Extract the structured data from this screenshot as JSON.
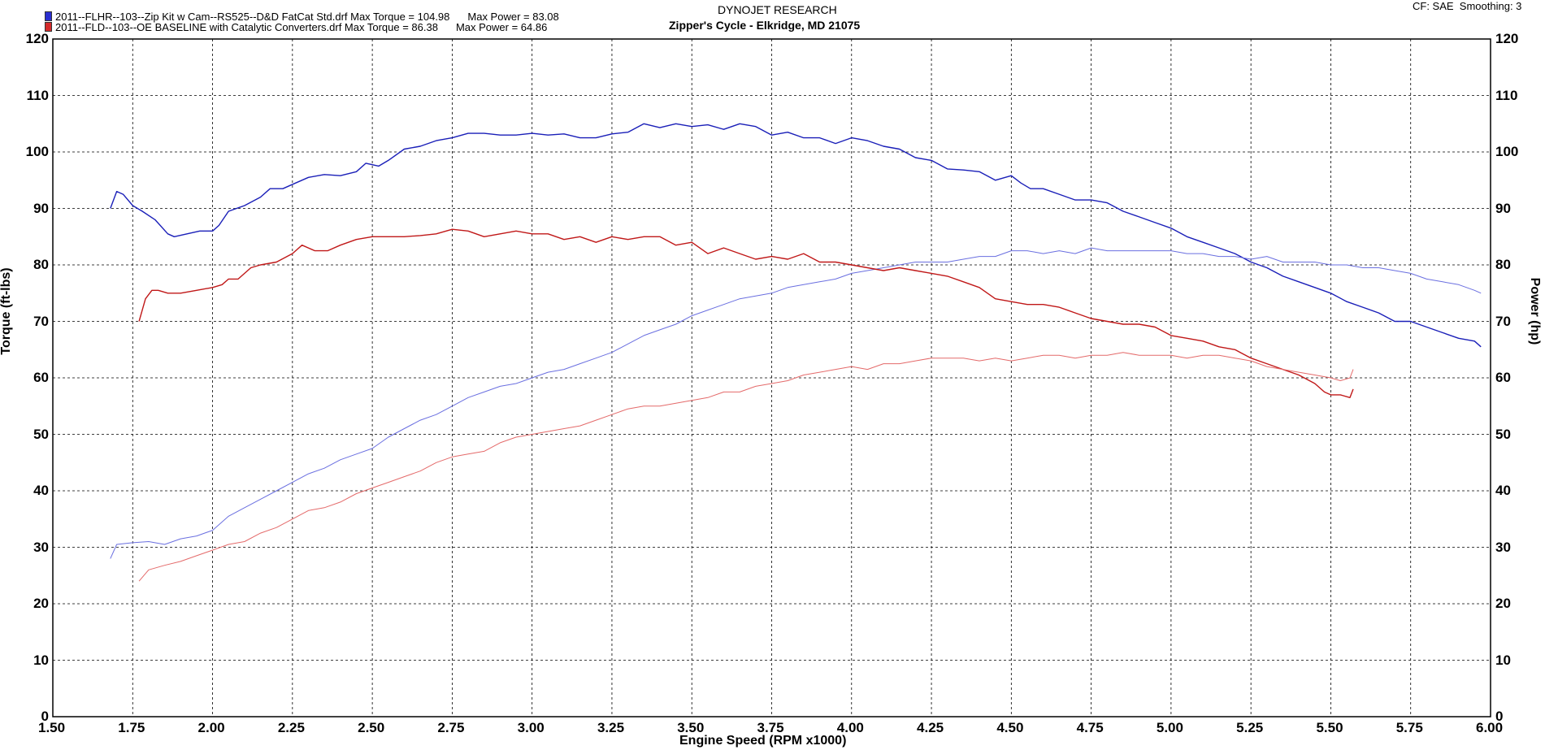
{
  "header": {
    "company": "DYNOJET RESEARCH",
    "shop": "Zipper's Cycle - Elkridge, MD 21075",
    "settings": "CF: SAE  Smoothing: 3"
  },
  "legend": [
    {
      "file": "2011--FLHR--103--Zip Kit w Cam--RS525--D&D FatCat Std.drf Max Torque = 104.98",
      "power": "Max Power = 83.08",
      "color": "#2a2fd0"
    },
    {
      "file": "2011--FLD--103--OE BASELINE with Catalytic Converters.drf Max Torque = 86.38",
      "power": "Max Power = 64.86",
      "color": "#d42a2a"
    }
  ],
  "chart_data": {
    "type": "line",
    "xlabel": "Engine Speed (RPM x1000)",
    "ylabel_left": "Torque (ft-lbs)",
    "ylabel_right": "Power (hp)",
    "xlim": [
      1.5,
      6.0
    ],
    "ylim": [
      0,
      120
    ],
    "x_ticks": [
      "1.50",
      "1.75",
      "2.00",
      "2.25",
      "2.50",
      "2.75",
      "3.00",
      "3.25",
      "3.50",
      "3.75",
      "4.00",
      "4.25",
      "4.50",
      "4.75",
      "5.00",
      "5.25",
      "5.50",
      "5.75",
      "6.00"
    ],
    "y_ticks": [
      "0",
      "10",
      "20",
      "30",
      "40",
      "50",
      "60",
      "70",
      "80",
      "90",
      "100",
      "110",
      "120"
    ],
    "grid": true,
    "colors": {
      "run1_torque": "#1a1fb8",
      "run1_power": "#6a6fe0",
      "run2_torque": "#c01818",
      "run2_power": "#e46a6a"
    },
    "series": [
      {
        "kind": "torque",
        "run": 1,
        "x": [
          1.68,
          1.7,
          1.72,
          1.75,
          1.78,
          1.82,
          1.86,
          1.88,
          1.92,
          1.96,
          2.0,
          2.02,
          2.05,
          2.1,
          2.15,
          2.18,
          2.22,
          2.26,
          2.3,
          2.35,
          2.4,
          2.45,
          2.48,
          2.52,
          2.55,
          2.6,
          2.65,
          2.7,
          2.75,
          2.8,
          2.85,
          2.9,
          2.95,
          3.0,
          3.05,
          3.1,
          3.15,
          3.2,
          3.25,
          3.3,
          3.35,
          3.4,
          3.45,
          3.5,
          3.55,
          3.6,
          3.65,
          3.7,
          3.75,
          3.8,
          3.85,
          3.9,
          3.95,
          4.0,
          4.05,
          4.1,
          4.15,
          4.2,
          4.25,
          4.3,
          4.35,
          4.4,
          4.45,
          4.5,
          4.53,
          4.56,
          4.6,
          4.65,
          4.7,
          4.75,
          4.8,
          4.85,
          4.9,
          4.95,
          5.0,
          5.05,
          5.1,
          5.15,
          5.2,
          5.25,
          5.3,
          5.35,
          5.4,
          5.45,
          5.5,
          5.55,
          5.6,
          5.65,
          5.7,
          5.75,
          5.8,
          5.85,
          5.9,
          5.95,
          5.97
        ],
        "y": [
          90.0,
          93.0,
          92.5,
          90.5,
          89.5,
          88.0,
          85.5,
          85.0,
          85.5,
          86.0,
          86.0,
          87.0,
          89.5,
          90.5,
          92.0,
          93.5,
          93.5,
          94.5,
          95.5,
          96.0,
          95.8,
          96.5,
          98.0,
          97.5,
          98.5,
          100.5,
          101.0,
          102.0,
          102.5,
          103.3,
          103.3,
          103.0,
          103.0,
          103.3,
          103.0,
          103.2,
          102.5,
          102.5,
          103.2,
          103.5,
          105.0,
          104.3,
          105.0,
          104.5,
          104.8,
          104.0,
          105.0,
          104.5,
          103.0,
          103.5,
          102.5,
          102.5,
          101.5,
          102.5,
          102.0,
          101.0,
          100.5,
          99.0,
          98.5,
          97.0,
          96.8,
          96.5,
          95.0,
          95.8,
          94.5,
          93.5,
          93.5,
          92.5,
          91.5,
          91.5,
          91.0,
          89.5,
          88.5,
          87.5,
          86.5,
          85.0,
          84.0,
          83.0,
          82.0,
          80.5,
          79.5,
          78.0,
          77.0,
          76.0,
          75.0,
          73.5,
          72.5,
          71.5,
          70.0,
          70.0,
          69.0,
          68.0,
          67.0,
          66.5,
          65.5
        ]
      },
      {
        "kind": "power",
        "run": 1,
        "x": [
          1.68,
          1.7,
          1.75,
          1.8,
          1.85,
          1.9,
          1.95,
          2.0,
          2.05,
          2.1,
          2.15,
          2.2,
          2.25,
          2.3,
          2.35,
          2.4,
          2.45,
          2.5,
          2.55,
          2.6,
          2.65,
          2.7,
          2.75,
          2.8,
          2.85,
          2.9,
          2.95,
          3.0,
          3.05,
          3.1,
          3.15,
          3.2,
          3.25,
          3.3,
          3.35,
          3.4,
          3.45,
          3.5,
          3.55,
          3.6,
          3.65,
          3.7,
          3.75,
          3.8,
          3.85,
          3.9,
          3.95,
          4.0,
          4.05,
          4.1,
          4.15,
          4.2,
          4.25,
          4.3,
          4.35,
          4.4,
          4.45,
          4.5,
          4.55,
          4.6,
          4.65,
          4.7,
          4.75,
          4.8,
          4.85,
          4.9,
          4.95,
          5.0,
          5.05,
          5.1,
          5.15,
          5.2,
          5.25,
          5.3,
          5.35,
          5.4,
          5.45,
          5.5,
          5.55,
          5.6,
          5.65,
          5.7,
          5.75,
          5.8,
          5.85,
          5.9,
          5.95,
          5.97
        ],
        "y": [
          28.0,
          30.5,
          30.8,
          31.0,
          30.5,
          31.5,
          32.0,
          33.0,
          35.5,
          37.0,
          38.5,
          40.0,
          41.5,
          43.0,
          44.0,
          45.5,
          46.5,
          47.5,
          49.5,
          51.0,
          52.5,
          53.5,
          55.0,
          56.5,
          57.5,
          58.5,
          59.0,
          60.0,
          61.0,
          61.5,
          62.5,
          63.5,
          64.5,
          66.0,
          67.5,
          68.5,
          69.5,
          71.0,
          72.0,
          73.0,
          74.0,
          74.5,
          75.0,
          76.0,
          76.5,
          77.0,
          77.5,
          78.5,
          79.0,
          79.5,
          80.0,
          80.5,
          80.5,
          80.5,
          81.0,
          81.5,
          81.5,
          82.5,
          82.5,
          82.0,
          82.5,
          82.0,
          83.0,
          82.5,
          82.5,
          82.5,
          82.5,
          82.5,
          82.0,
          82.0,
          81.5,
          81.5,
          81.0,
          81.5,
          80.5,
          80.5,
          80.5,
          80.0,
          80.0,
          79.5,
          79.5,
          79.0,
          78.5,
          77.5,
          77.0,
          76.5,
          75.5,
          75.0
        ]
      },
      {
        "kind": "torque",
        "run": 2,
        "x": [
          1.77,
          1.79,
          1.81,
          1.83,
          1.86,
          1.9,
          1.95,
          2.0,
          2.03,
          2.05,
          2.08,
          2.12,
          2.15,
          2.2,
          2.25,
          2.28,
          2.32,
          2.36,
          2.4,
          2.45,
          2.5,
          2.55,
          2.6,
          2.65,
          2.7,
          2.75,
          2.8,
          2.85,
          2.9,
          2.95,
          3.0,
          3.05,
          3.1,
          3.15,
          3.2,
          3.25,
          3.3,
          3.35,
          3.4,
          3.45,
          3.5,
          3.55,
          3.6,
          3.65,
          3.7,
          3.75,
          3.8,
          3.85,
          3.9,
          3.95,
          4.0,
          4.05,
          4.1,
          4.15,
          4.2,
          4.25,
          4.3,
          4.35,
          4.4,
          4.45,
          4.5,
          4.55,
          4.6,
          4.65,
          4.7,
          4.75,
          4.8,
          4.85,
          4.9,
          4.95,
          5.0,
          5.05,
          5.1,
          5.15,
          5.2,
          5.25,
          5.3,
          5.35,
          5.4,
          5.45,
          5.48,
          5.5,
          5.53,
          5.56,
          5.57
        ],
        "y": [
          70.0,
          74.0,
          75.5,
          75.5,
          75.0,
          75.0,
          75.5,
          76.0,
          76.5,
          77.5,
          77.5,
          79.5,
          80.0,
          80.5,
          82.0,
          83.5,
          82.5,
          82.5,
          83.5,
          84.5,
          85.0,
          85.0,
          85.0,
          85.2,
          85.5,
          86.3,
          86.0,
          85.0,
          85.5,
          86.0,
          85.5,
          85.5,
          84.5,
          85.0,
          84.0,
          85.0,
          84.5,
          85.0,
          85.0,
          83.5,
          84.0,
          82.0,
          83.0,
          82.0,
          81.0,
          81.5,
          81.0,
          82.0,
          80.5,
          80.5,
          80.0,
          79.5,
          79.0,
          79.5,
          79.0,
          78.5,
          78.0,
          77.0,
          76.0,
          74.0,
          73.5,
          73.0,
          73.0,
          72.5,
          71.5,
          70.5,
          70.0,
          69.5,
          69.5,
          69.0,
          67.5,
          67.0,
          66.5,
          65.5,
          65.0,
          63.5,
          62.5,
          61.5,
          60.5,
          59.0,
          57.5,
          57.0,
          57.0,
          56.5,
          58.0
        ]
      },
      {
        "kind": "power",
        "run": 2,
        "x": [
          1.77,
          1.8,
          1.85,
          1.9,
          1.95,
          2.0,
          2.05,
          2.1,
          2.15,
          2.2,
          2.25,
          2.3,
          2.35,
          2.4,
          2.45,
          2.5,
          2.55,
          2.6,
          2.65,
          2.7,
          2.75,
          2.8,
          2.85,
          2.9,
          2.95,
          3.0,
          3.05,
          3.1,
          3.15,
          3.2,
          3.25,
          3.3,
          3.35,
          3.4,
          3.45,
          3.5,
          3.55,
          3.6,
          3.65,
          3.7,
          3.75,
          3.8,
          3.85,
          3.9,
          3.95,
          4.0,
          4.05,
          4.1,
          4.15,
          4.2,
          4.25,
          4.3,
          4.35,
          4.4,
          4.45,
          4.5,
          4.55,
          4.6,
          4.65,
          4.7,
          4.75,
          4.8,
          4.85,
          4.9,
          4.95,
          5.0,
          5.05,
          5.1,
          5.15,
          5.2,
          5.25,
          5.3,
          5.35,
          5.4,
          5.45,
          5.5,
          5.53,
          5.56,
          5.57
        ],
        "y": [
          24.0,
          26.0,
          26.8,
          27.5,
          28.5,
          29.5,
          30.5,
          31.0,
          32.5,
          33.5,
          35.0,
          36.5,
          37.0,
          38.0,
          39.5,
          40.5,
          41.5,
          42.5,
          43.5,
          45.0,
          46.0,
          46.5,
          47.0,
          48.5,
          49.5,
          50.0,
          50.5,
          51.0,
          51.5,
          52.5,
          53.5,
          54.5,
          55.0,
          55.0,
          55.5,
          56.0,
          56.5,
          57.5,
          57.5,
          58.5,
          59.0,
          59.5,
          60.5,
          61.0,
          61.5,
          62.0,
          61.5,
          62.5,
          62.5,
          63.0,
          63.5,
          63.5,
          63.5,
          63.0,
          63.5,
          63.0,
          63.5,
          64.0,
          64.0,
          63.5,
          64.0,
          64.0,
          64.5,
          64.0,
          64.0,
          64.0,
          63.5,
          64.0,
          64.0,
          63.5,
          63.0,
          62.0,
          61.5,
          61.0,
          60.5,
          60.0,
          59.5,
          60.0,
          61.5
        ]
      }
    ]
  }
}
